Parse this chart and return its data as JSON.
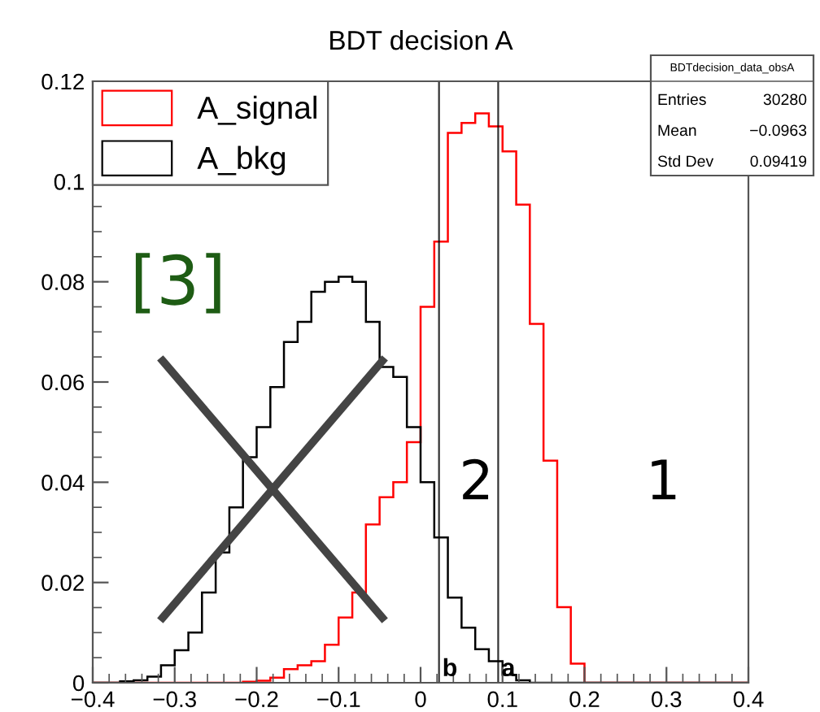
{
  "chart_data": {
    "type": "histogram",
    "title": "BDT decision A",
    "bins": [
      -0.4,
      -0.3833,
      -0.3667,
      -0.35,
      -0.3333,
      -0.3167,
      -0.3,
      -0.2833,
      -0.2667,
      -0.25,
      -0.2333,
      -0.2167,
      -0.2,
      -0.1833,
      -0.1667,
      -0.15,
      -0.1333,
      -0.1167,
      -0.1,
      -0.0833,
      -0.0667,
      -0.05,
      -0.0333,
      -0.0167,
      0,
      0.0167,
      0.0333,
      0.05,
      0.0667,
      0.0833,
      0.1,
      0.1167,
      0.1333,
      0.15,
      0.1667,
      0.1833,
      0.2,
      0.2167,
      0.2333,
      0.25,
      0.2667,
      0.2833,
      0.3,
      0.3167,
      0.3333,
      0.35,
      0.3667,
      0.3833,
      0.4
    ],
    "series": [
      {
        "name": "A_signal",
        "color": "#ff0000",
        "values": [
          0,
          0,
          0,
          0,
          0,
          0,
          0,
          0,
          0,
          0,
          0,
          0.0002,
          0.0004,
          0.001,
          0.0027,
          0.0035,
          0.0043,
          0.0076,
          0.013,
          0.018,
          0.0316,
          0.037,
          0.04,
          0.048,
          0.075,
          0.088,
          0.1097,
          0.1117,
          0.1136,
          0.111,
          0.106,
          0.0954,
          0.0716,
          0.0443,
          0.0151,
          0.0038,
          0,
          0,
          0,
          0,
          0,
          0,
          0,
          0,
          0,
          0,
          0,
          0
        ]
      },
      {
        "name": "A_bkg",
        "color": "#000000",
        "values": [
          0,
          0,
          0.0003,
          0.0005,
          0.0012,
          0.0035,
          0.0065,
          0.01,
          0.018,
          0.026,
          0.035,
          0.045,
          0.051,
          0.059,
          0.068,
          0.072,
          0.078,
          0.08,
          0.081,
          0.08,
          0.072,
          0.063,
          0.061,
          0.051,
          0.04,
          0.029,
          0.017,
          0.011,
          0.0067,
          0.0043,
          0.0016,
          0.0005,
          0,
          0,
          0,
          0,
          0,
          0,
          0,
          0,
          0,
          0,
          0,
          0,
          0,
          0,
          0,
          0
        ]
      }
    ],
    "xlim": [
      -0.4,
      0.4
    ],
    "xticks": [
      {
        "value": -0.4,
        "label": "−0.4"
      },
      {
        "value": -0.3,
        "label": "−0.3"
      },
      {
        "value": -0.2,
        "label": "−0.2"
      },
      {
        "value": -0.1,
        "label": "−0.1"
      },
      0,
      0.1,
      0.2,
      0.3,
      0.4
    ],
    "ylim": [
      0,
      0.12
    ],
    "yticks": [
      0,
      0.02,
      0.04,
      0.06,
      0.08,
      0.1,
      0.12
    ],
    "ref_lines": [
      {
        "axis": "x",
        "value": 0.0225,
        "label": "b",
        "color": "#000000"
      },
      {
        "axis": "x",
        "value": 0.0947,
        "label": "a",
        "color": "#000000"
      }
    ],
    "annotations": [
      "[3]",
      "2",
      "1",
      "BDTdecision_data_obsA",
      "Entries",
      "30280",
      "Mean",
      "−0.0963",
      "Std Dev",
      "0.09419"
    ],
    "legend": "top left",
    "grid": false
  }
}
